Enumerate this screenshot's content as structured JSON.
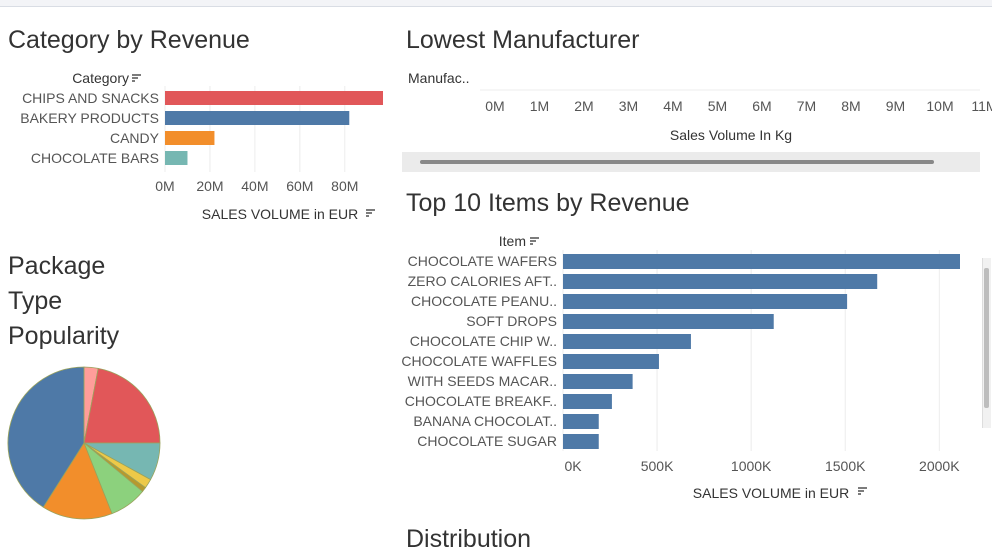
{
  "titles": {
    "category": "Category by Revenue",
    "lowest": "Lowest Manufacturer",
    "package": [
      "Package",
      "Type",
      "Popularity"
    ],
    "top10": "Top 10 Items by Revenue",
    "distribution": "Distribution"
  },
  "chart_data": [
    {
      "type": "bar",
      "orientation": "horizontal",
      "title": "Category by Revenue",
      "row_header": "Category",
      "xlabel": "SALES VOLUME  in EUR",
      "categories": [
        "CHIPS AND SNACKS",
        "BAKERY PRODUCTS",
        "CANDY",
        "CHOCOLATE BARS"
      ],
      "values": [
        97000000,
        82000000,
        22000000,
        10000000
      ],
      "colors": [
        "#e15759",
        "#4e79a7",
        "#f28e2b",
        "#76b7b2"
      ],
      "xticks": [
        "0M",
        "20M",
        "40M",
        "60M",
        "80M"
      ],
      "xlim": [
        0,
        97000000
      ],
      "grid": true
    },
    {
      "type": "bar",
      "orientation": "horizontal",
      "title": "Lowest Manufacturer",
      "row_header": "Manufac..",
      "xlabel": "Sales Volume In Kg",
      "categories": [],
      "values": [],
      "xticks": [
        "0M",
        "1M",
        "2M",
        "3M",
        "4M",
        "5M",
        "6M",
        "7M",
        "8M",
        "9M",
        "10M",
        "11M"
      ],
      "xlim": [
        0,
        11000000
      ]
    },
    {
      "type": "pie",
      "title": "Package Type Popularity",
      "values": [
        0.03,
        0.22,
        0.08,
        0.02,
        0.01,
        0.08,
        0.15,
        0.41
      ],
      "colors": [
        "#ff9d9a",
        "#e15759",
        "#76b7b2",
        "#edc948",
        "#b6992d",
        "#8cd17d",
        "#f28e2b",
        "#4e79a7"
      ]
    },
    {
      "type": "bar",
      "orientation": "horizontal",
      "title": "Top 10 Items by Revenue",
      "row_header": "Item",
      "xlabel": "SALES VOLUME  in EUR",
      "categories": [
        "CHOCOLATE WAFERS",
        "ZERO CALORIES AFT..",
        "CHOCOLATE PEANU..",
        "SOFT DROPS",
        "CHOCOLATE CHIP W..",
        "CHOCOLATE WAFFLES",
        "WITH SEEDS MACAR..",
        "CHOCOLATE BREAKF..",
        "BANANA CHOCOLAT..",
        "CHOCOLATE SUGAR"
      ],
      "values": [
        2110000,
        1670000,
        1510000,
        1120000,
        680000,
        510000,
        370000,
        260000,
        190000,
        190000
      ],
      "color": "#4e79a7",
      "xticks": [
        "0K",
        "500K",
        "1000K",
        "1500K",
        "2000K"
      ],
      "xlim": [
        0,
        2150000
      ],
      "grid": true
    }
  ]
}
